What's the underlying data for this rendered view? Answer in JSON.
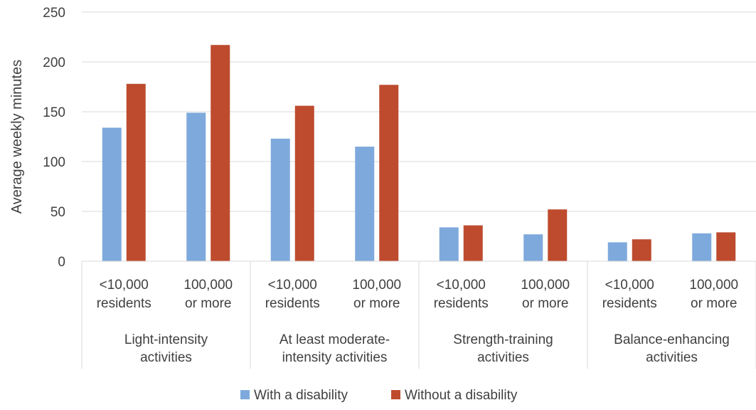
{
  "chart_data": {
    "type": "bar",
    "ylabel": "Average weekly minutes",
    "ylim": [
      0,
      250
    ],
    "yticks": [
      "0",
      "50",
      "100",
      "150",
      "200",
      "250"
    ],
    "grid": true,
    "legend_position": "bottom",
    "groups": [
      {
        "label": [
          "Light-intensity",
          "activities"
        ],
        "categories": [
          [
            "<10,000",
            "residents"
          ],
          [
            "100,000",
            "or more"
          ]
        ]
      },
      {
        "label": [
          "At least moderate-",
          "intensity activities"
        ],
        "categories": [
          [
            "<10,000",
            "residents"
          ],
          [
            "100,000",
            "or more"
          ]
        ]
      },
      {
        "label": [
          "Strength-training",
          "activities"
        ],
        "categories": [
          [
            "<10,000",
            "residents"
          ],
          [
            "100,000",
            "or more"
          ]
        ]
      },
      {
        "label": [
          "Balance-enhancing",
          "activities"
        ],
        "categories": [
          [
            "<10,000",
            "residents"
          ],
          [
            "100,000",
            "or more"
          ]
        ]
      }
    ],
    "series": [
      {
        "name": "With a disability",
        "color": "#7EA9DC",
        "values": [
          134,
          149,
          123,
          115,
          34,
          27,
          19,
          28
        ]
      },
      {
        "name": "Without a disability",
        "color": "#BE4B2E",
        "values": [
          178,
          217,
          156,
          177,
          36,
          52,
          22,
          29
        ]
      }
    ]
  }
}
